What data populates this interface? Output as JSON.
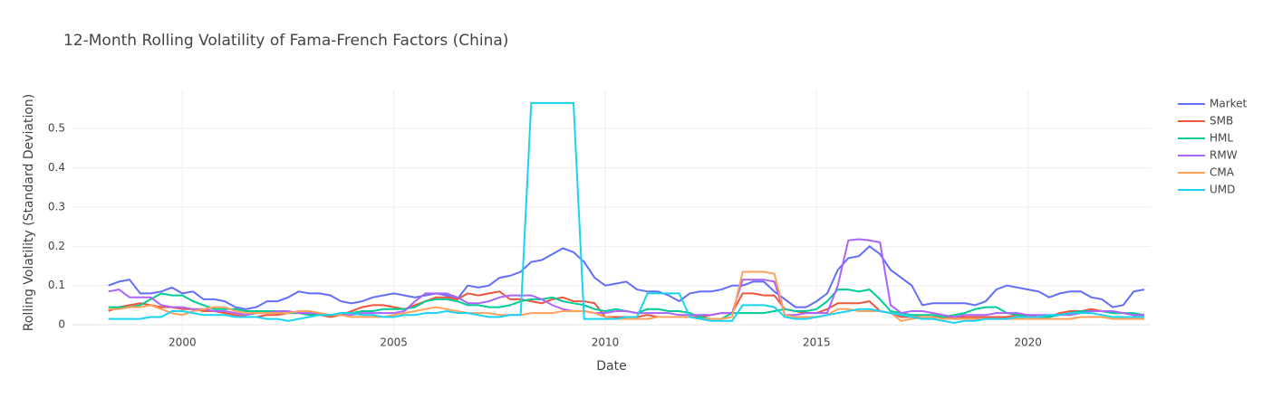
{
  "chart_data": {
    "type": "line",
    "title": "12-Month Rolling Volatility of Fama-French Factors (China)",
    "x_label": "Date",
    "y_label": "Rolling Volatility (Standard Deviation)",
    "xlim": [
      1997.4,
      2022.9
    ],
    "ylim": [
      -0.025,
      0.597
    ],
    "xticks": [
      2000,
      2005,
      2010,
      2015,
      2020
    ],
    "yticks": [
      0,
      0.1,
      0.2,
      0.3,
      0.4,
      0.5
    ],
    "grid": true,
    "legend": "top-right",
    "x": [
      1998.25,
      1998.5,
      1998.75,
      1999,
      1999.25,
      1999.5,
      1999.75,
      2000,
      2000.25,
      2000.5,
      2000.75,
      2001,
      2001.25,
      2001.5,
      2001.75,
      2002,
      2002.25,
      2002.5,
      2002.75,
      2003,
      2003.25,
      2003.5,
      2003.75,
      2004,
      2004.25,
      2004.5,
      2004.75,
      2005,
      2005.25,
      2005.5,
      2005.75,
      2006,
      2006.25,
      2006.5,
      2006.75,
      2007,
      2007.25,
      2007.5,
      2007.75,
      2008,
      2008.25,
      2008.5,
      2008.75,
      2009,
      2009.25,
      2009.5,
      2009.75,
      2010,
      2010.25,
      2010.5,
      2010.75,
      2011,
      2011.25,
      2011.5,
      2011.75,
      2012,
      2012.25,
      2012.5,
      2012.75,
      2013,
      2013.25,
      2013.5,
      2013.75,
      2014,
      2014.25,
      2014.5,
      2014.75,
      2015,
      2015.25,
      2015.5,
      2015.75,
      2016,
      2016.25,
      2016.5,
      2016.75,
      2017,
      2017.25,
      2017.5,
      2017.75,
      2018,
      2018.25,
      2018.5,
      2018.75,
      2019,
      2019.25,
      2019.5,
      2019.75,
      2020,
      2020.25,
      2020.5,
      2020.75,
      2021,
      2021.25,
      2021.5,
      2021.75,
      2022,
      2022.25,
      2022.5,
      2022.75
    ],
    "series": [
      {
        "name": "Market",
        "color": "#636efa",
        "values": [
          0.1,
          0.11,
          0.115,
          0.08,
          0.08,
          0.085,
          0.095,
          0.08,
          0.085,
          0.065,
          0.065,
          0.06,
          0.045,
          0.04,
          0.045,
          0.06,
          0.06,
          0.07,
          0.085,
          0.08,
          0.08,
          0.075,
          0.06,
          0.055,
          0.06,
          0.07,
          0.075,
          0.08,
          0.075,
          0.07,
          0.075,
          0.08,
          0.075,
          0.065,
          0.1,
          0.095,
          0.1,
          0.12,
          0.125,
          0.135,
          0.16,
          0.165,
          0.18,
          0.195,
          0.185,
          0.16,
          0.12,
          0.1,
          0.105,
          0.11,
          0.09,
          0.085,
          0.085,
          0.075,
          0.06,
          0.08,
          0.085,
          0.085,
          0.09,
          0.1,
          0.1,
          0.11,
          0.11,
          0.085,
          0.065,
          0.045,
          0.045,
          0.06,
          0.08,
          0.14,
          0.17,
          0.175,
          0.2,
          0.18,
          0.14,
          0.12,
          0.1,
          0.05,
          0.055,
          0.055,
          0.055,
          0.055,
          0.05,
          0.06,
          0.09,
          0.1,
          0.095,
          0.09,
          0.085,
          0.07,
          0.08,
          0.085,
          0.085,
          0.07,
          0.065,
          0.045,
          0.05,
          0.085,
          0.09
        ]
      },
      {
        "name": "SMB",
        "color": "#EF553B",
        "values": [
          0.035,
          0.045,
          0.05,
          0.055,
          0.05,
          0.045,
          0.045,
          0.04,
          0.04,
          0.035,
          0.035,
          0.03,
          0.025,
          0.02,
          0.02,
          0.025,
          0.025,
          0.03,
          0.03,
          0.03,
          0.025,
          0.02,
          0.025,
          0.035,
          0.045,
          0.05,
          0.05,
          0.045,
          0.04,
          0.05,
          0.06,
          0.07,
          0.07,
          0.065,
          0.08,
          0.075,
          0.08,
          0.085,
          0.065,
          0.065,
          0.06,
          0.055,
          0.065,
          0.07,
          0.06,
          0.06,
          0.055,
          0.02,
          0.02,
          0.02,
          0.02,
          0.025,
          0.02,
          0.02,
          0.02,
          0.02,
          0.02,
          0.025,
          0.03,
          0.03,
          0.08,
          0.08,
          0.075,
          0.075,
          0.04,
          0.035,
          0.03,
          0.03,
          0.04,
          0.055,
          0.055,
          0.055,
          0.06,
          0.035,
          0.03,
          0.02,
          0.02,
          0.02,
          0.02,
          0.02,
          0.02,
          0.02,
          0.02,
          0.02,
          0.02,
          0.02,
          0.025,
          0.025,
          0.02,
          0.02,
          0.03,
          0.035,
          0.035,
          0.04,
          0.035,
          0.03,
          0.03,
          0.025,
          0.025
        ]
      },
      {
        "name": "HML",
        "color": "#00cc96",
        "values": [
          0.045,
          0.045,
          0.045,
          0.05,
          0.065,
          0.08,
          0.075,
          0.075,
          0.06,
          0.05,
          0.04,
          0.04,
          0.04,
          0.035,
          0.035,
          0.035,
          0.035,
          0.03,
          0.03,
          0.025,
          0.025,
          0.025,
          0.03,
          0.03,
          0.035,
          0.035,
          0.04,
          0.04,
          0.04,
          0.045,
          0.06,
          0.065,
          0.065,
          0.06,
          0.05,
          0.05,
          0.045,
          0.045,
          0.05,
          0.06,
          0.065,
          0.065,
          0.07,
          0.06,
          0.055,
          0.05,
          0.04,
          0.035,
          0.04,
          0.035,
          0.03,
          0.04,
          0.04,
          0.035,
          0.035,
          0.03,
          0.02,
          0.015,
          0.015,
          0.03,
          0.03,
          0.03,
          0.03,
          0.035,
          0.04,
          0.035,
          0.035,
          0.04,
          0.06,
          0.09,
          0.09,
          0.085,
          0.09,
          0.065,
          0.035,
          0.03,
          0.025,
          0.025,
          0.025,
          0.02,
          0.025,
          0.03,
          0.04,
          0.045,
          0.045,
          0.03,
          0.025,
          0.02,
          0.02,
          0.02,
          0.025,
          0.03,
          0.035,
          0.035,
          0.035,
          0.03,
          0.03,
          0.03,
          0.025
        ]
      },
      {
        "name": "RMW",
        "color": "#ab63fa",
        "values": [
          0.085,
          0.09,
          0.07,
          0.07,
          0.07,
          0.05,
          0.045,
          0.045,
          0.04,
          0.04,
          0.035,
          0.035,
          0.03,
          0.025,
          0.03,
          0.03,
          0.035,
          0.035,
          0.03,
          0.03,
          0.03,
          0.025,
          0.025,
          0.025,
          0.03,
          0.03,
          0.03,
          0.03,
          0.035,
          0.06,
          0.08,
          0.08,
          0.08,
          0.07,
          0.055,
          0.055,
          0.06,
          0.07,
          0.075,
          0.075,
          0.075,
          0.065,
          0.05,
          0.04,
          0.035,
          0.035,
          0.03,
          0.03,
          0.035,
          0.035,
          0.03,
          0.03,
          0.03,
          0.03,
          0.025,
          0.025,
          0.025,
          0.025,
          0.03,
          0.03,
          0.115,
          0.115,
          0.115,
          0.11,
          0.025,
          0.025,
          0.03,
          0.03,
          0.03,
          0.1,
          0.215,
          0.218,
          0.215,
          0.21,
          0.05,
          0.03,
          0.035,
          0.035,
          0.03,
          0.025,
          0.02,
          0.025,
          0.025,
          0.025,
          0.03,
          0.03,
          0.03,
          0.025,
          0.025,
          0.025,
          0.025,
          0.025,
          0.03,
          0.035,
          0.035,
          0.035,
          0.03,
          0.025,
          0.025
        ]
      },
      {
        "name": "CMA",
        "color": "#FFA15A",
        "values": [
          0.04,
          0.04,
          0.045,
          0.045,
          0.05,
          0.04,
          0.03,
          0.025,
          0.035,
          0.04,
          0.045,
          0.045,
          0.035,
          0.03,
          0.03,
          0.03,
          0.03,
          0.03,
          0.035,
          0.035,
          0.03,
          0.025,
          0.025,
          0.02,
          0.02,
          0.02,
          0.02,
          0.025,
          0.03,
          0.035,
          0.04,
          0.045,
          0.04,
          0.035,
          0.03,
          0.03,
          0.03,
          0.025,
          0.025,
          0.025,
          0.03,
          0.03,
          0.03,
          0.035,
          0.035,
          0.035,
          0.03,
          0.02,
          0.015,
          0.015,
          0.015,
          0.015,
          0.02,
          0.02,
          0.02,
          0.02,
          0.015,
          0.015,
          0.015,
          0.02,
          0.135,
          0.135,
          0.135,
          0.13,
          0.025,
          0.02,
          0.02,
          0.02,
          0.025,
          0.04,
          0.04,
          0.035,
          0.035,
          0.035,
          0.03,
          0.01,
          0.015,
          0.02,
          0.02,
          0.015,
          0.015,
          0.015,
          0.015,
          0.015,
          0.015,
          0.015,
          0.015,
          0.015,
          0.015,
          0.015,
          0.015,
          0.015,
          0.02,
          0.02,
          0.02,
          0.015,
          0.015,
          0.015,
          0.015
        ]
      },
      {
        "name": "UMD",
        "color": "#19d3f3",
        "values": [
          0.015,
          0.015,
          0.015,
          0.015,
          0.02,
          0.02,
          0.035,
          0.035,
          0.03,
          0.025,
          0.025,
          0.025,
          0.02,
          0.02,
          0.02,
          0.015,
          0.015,
          0.01,
          0.015,
          0.02,
          0.025,
          0.025,
          0.03,
          0.03,
          0.025,
          0.025,
          0.02,
          0.02,
          0.025,
          0.025,
          0.03,
          0.03,
          0.035,
          0.03,
          0.03,
          0.025,
          0.02,
          0.02,
          0.025,
          0.025,
          0.565,
          0.565,
          0.565,
          0.565,
          0.565,
          0.015,
          0.015,
          0.015,
          0.015,
          0.02,
          0.02,
          0.08,
          0.08,
          0.08,
          0.08,
          0.02,
          0.015,
          0.01,
          0.01,
          0.01,
          0.05,
          0.05,
          0.05,
          0.045,
          0.02,
          0.015,
          0.015,
          0.02,
          0.025,
          0.03,
          0.035,
          0.04,
          0.04,
          0.035,
          0.03,
          0.025,
          0.02,
          0.015,
          0.015,
          0.01,
          0.005,
          0.01,
          0.01,
          0.015,
          0.015,
          0.015,
          0.02,
          0.02,
          0.02,
          0.025,
          0.025,
          0.03,
          0.03,
          0.03,
          0.025,
          0.02,
          0.02,
          0.02,
          0.02
        ]
      }
    ]
  }
}
